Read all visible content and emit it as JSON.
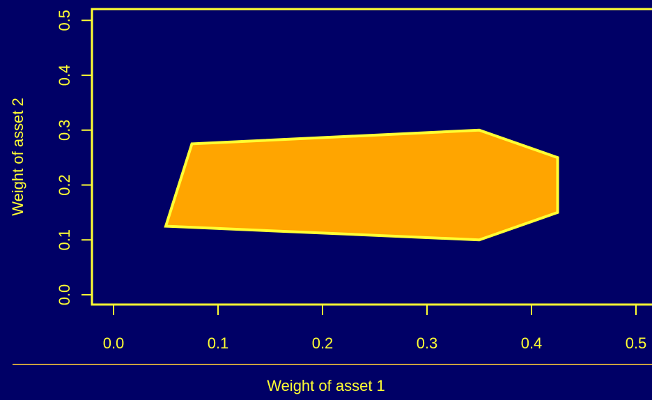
{
  "chart_data": {
    "type": "area",
    "title": "",
    "xlabel": "Weight of asset 1",
    "ylabel": "Weight of asset 2",
    "xlim": [
      0.0,
      0.5
    ],
    "ylim": [
      0.0,
      0.5
    ],
    "x_ticks": [
      "0.0",
      "0.1",
      "0.2",
      "0.3",
      "0.4",
      "0.5"
    ],
    "y_ticks": [
      "0.0",
      "0.1",
      "0.2",
      "0.3",
      "0.4",
      "0.5"
    ],
    "polygon": [
      {
        "x": 0.05,
        "y": 0.125
      },
      {
        "x": 0.075,
        "y": 0.275
      },
      {
        "x": 0.35,
        "y": 0.3
      },
      {
        "x": 0.425,
        "y": 0.25
      },
      {
        "x": 0.425,
        "y": 0.15
      },
      {
        "x": 0.35,
        "y": 0.1
      }
    ],
    "grid": false,
    "colors": {
      "background": "#000066",
      "axis": "#ffff33",
      "fill": "#ffa500",
      "outline": "#ffff33",
      "separator": "#c8a040"
    }
  }
}
